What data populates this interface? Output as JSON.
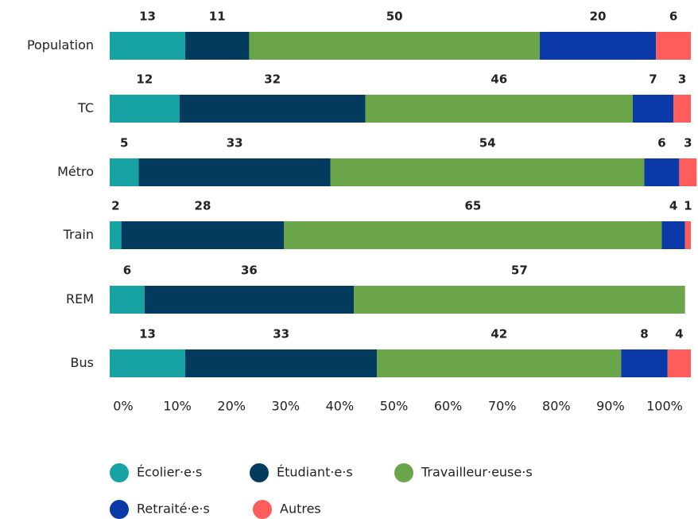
{
  "chart_data": {
    "type": "stacked-bar-horizontal",
    "categories": [
      "Population",
      "TC",
      "Métro",
      "Train",
      "REM",
      "Bus"
    ],
    "series": [
      {
        "name": "Écolier·e·s",
        "color": "#17a2a4",
        "values": [
          13,
          12,
          5,
          2,
          6,
          13
        ]
      },
      {
        "name": "Étudiant·e·s",
        "color": "#033b5e",
        "values": [
          11,
          32,
          33,
          28,
          36,
          33
        ]
      },
      {
        "name": "Travailleur·euse·s",
        "color": "#6ba54a",
        "values": [
          50,
          46,
          54,
          65,
          57,
          42
        ]
      },
      {
        "name": "Retraité·e·s",
        "color": "#0b3aa8",
        "values": [
          20,
          7,
          6,
          4,
          null,
          8
        ]
      },
      {
        "name": "Autres",
        "color": "#ff5c5c",
        "values": [
          6,
          3,
          3,
          1,
          null,
          4
        ]
      }
    ],
    "xlim": [
      0,
      100
    ],
    "xticks": [
      {
        "value": 0,
        "label": "0%"
      },
      {
        "value": 10,
        "label": "10%"
      },
      {
        "value": 20,
        "label": "20%"
      },
      {
        "value": 30,
        "label": "30%"
      },
      {
        "value": 40,
        "label": "40%"
      },
      {
        "value": 50,
        "label": "50%"
      },
      {
        "value": 60,
        "label": "60%"
      },
      {
        "value": 70,
        "label": "70%"
      },
      {
        "value": 80,
        "label": "80%"
      },
      {
        "value": 90,
        "label": "90%"
      },
      {
        "value": 100,
        "label": "100%"
      }
    ]
  }
}
